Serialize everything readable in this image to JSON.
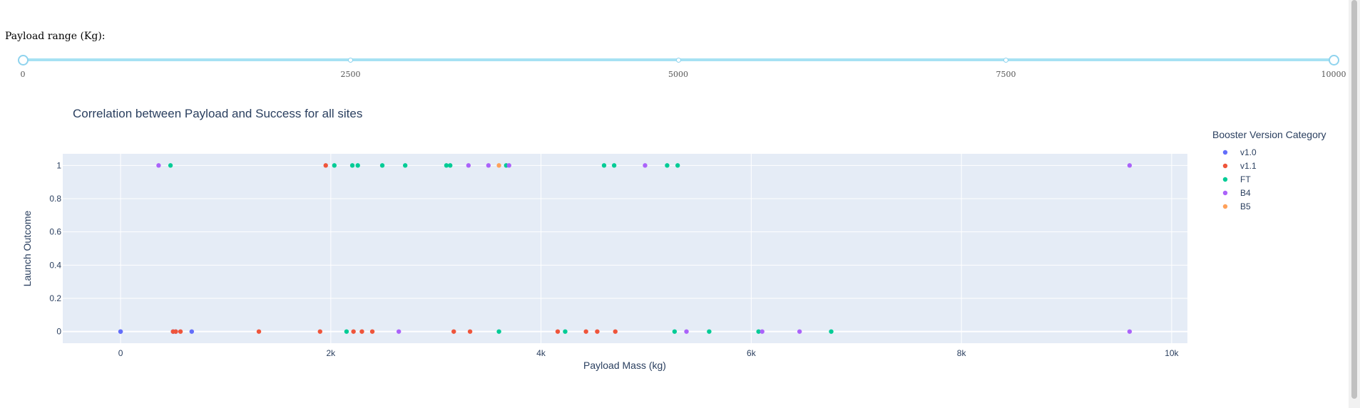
{
  "slider": {
    "label": "Payload range (Kg):",
    "min": 0,
    "max": 10000,
    "value_low": 0,
    "value_high": 10000,
    "marks": [
      "0",
      "2500",
      "5000",
      "7500",
      "10000"
    ]
  },
  "chart_data": {
    "type": "scatter",
    "title": "Correlation between Payload and Success for all sites",
    "xlabel": "Payload Mass (kg)",
    "ylabel": "Launch Outcome",
    "xlim": [
      -550,
      10150
    ],
    "ylim": [
      -0.07,
      1.07
    ],
    "x_ticks": [
      0,
      2000,
      4000,
      6000,
      8000,
      10000
    ],
    "x_tick_labels": [
      "0",
      "2k",
      "4k",
      "6k",
      "8k",
      "10k"
    ],
    "y_ticks": [
      0,
      0.2,
      0.4,
      0.6,
      0.8,
      1
    ],
    "y_tick_labels": [
      "0",
      "0.2",
      "0.4",
      "0.6",
      "0.8",
      "1"
    ],
    "grid": true,
    "legend_title": "Booster Version Category",
    "legend_position": "right",
    "series": [
      {
        "name": "v1.0",
        "color": "#636efa",
        "x": [
          0,
          0,
          500,
          525,
          677
        ],
        "y": [
          0,
          0,
          0,
          0,
          0
        ]
      },
      {
        "name": "v1.1",
        "color": "#ef553b",
        "x": [
          1952,
          500,
          525,
          570,
          1316,
          1898,
          2216,
          2296,
          2395,
          3170,
          3325,
          4159,
          4428,
          4535,
          4707
        ],
        "y": [
          1,
          0,
          0,
          0,
          0,
          0,
          0,
          0,
          0,
          0,
          0,
          0,
          0,
          0,
          0
        ]
      },
      {
        "name": "FT",
        "color": "#00cc96",
        "x": [
          475,
          2034,
          2205,
          2257,
          2490,
          2708,
          3100,
          3136,
          3669,
          4600,
          4696,
          5200,
          5300,
          2150,
          3600,
          4230,
          5271,
          5600,
          6070,
          6761
        ],
        "y": [
          1,
          1,
          1,
          1,
          1,
          1,
          1,
          1,
          1,
          1,
          1,
          1,
          1,
          0,
          0,
          0,
          0,
          0,
          0,
          0
        ]
      },
      {
        "name": "B4",
        "color": "#ab63fa",
        "x": [
          362,
          3310,
          3500,
          3696,
          4990,
          9600,
          2647,
          5384,
          6104,
          6460,
          9600
        ],
        "y": [
          1,
          1,
          1,
          1,
          1,
          1,
          0,
          0,
          0,
          0,
          0
        ]
      },
      {
        "name": "B5",
        "color": "#ffa15a",
        "x": [
          3600
        ],
        "y": [
          1
        ]
      }
    ]
  }
}
